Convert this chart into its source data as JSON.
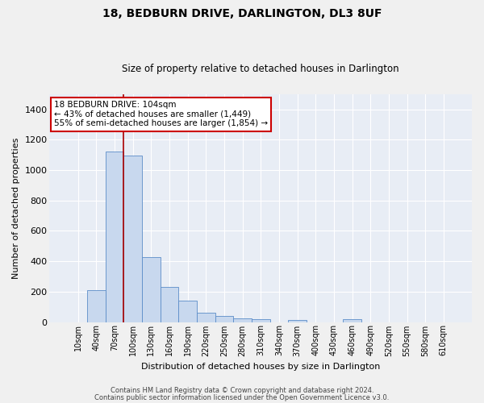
{
  "title": "18, BEDBURN DRIVE, DARLINGTON, DL3 8UF",
  "subtitle": "Size of property relative to detached houses in Darlington",
  "xlabel": "Distribution of detached houses by size in Darlington",
  "ylabel": "Number of detached properties",
  "bar_color": "#c8d8ee",
  "bar_edge_color": "#5b8cc8",
  "background_color": "#e8edf5",
  "grid_color": "#ffffff",
  "fig_background": "#f0f0f0",
  "categories": [
    "10sqm",
    "40sqm",
    "70sqm",
    "100sqm",
    "130sqm",
    "160sqm",
    "190sqm",
    "220sqm",
    "250sqm",
    "280sqm",
    "310sqm",
    "340sqm",
    "370sqm",
    "400sqm",
    "430sqm",
    "460sqm",
    "490sqm",
    "520sqm",
    "550sqm",
    "580sqm",
    "610sqm"
  ],
  "values": [
    0,
    210,
    1120,
    1095,
    425,
    230,
    143,
    60,
    38,
    24,
    20,
    0,
    13,
    0,
    0,
    20,
    0,
    0,
    0,
    0,
    0
  ],
  "ylim": [
    0,
    1500
  ],
  "yticks": [
    0,
    200,
    400,
    600,
    800,
    1000,
    1200,
    1400
  ],
  "red_line_x": 2.5,
  "red_line_color": "#aa0000",
  "annotation_text_line1": "18 BEDBURN DRIVE: 104sqm",
  "annotation_text_line2": "← 43% of detached houses are smaller (1,449)",
  "annotation_text_line3": "55% of semi-detached houses are larger (1,854) →",
  "annotation_box_facecolor": "#ffffff",
  "annotation_box_edgecolor": "#cc0000",
  "footer_line1": "Contains HM Land Registry data © Crown copyright and database right 2024.",
  "footer_line2": "Contains public sector information licensed under the Open Government Licence v3.0."
}
